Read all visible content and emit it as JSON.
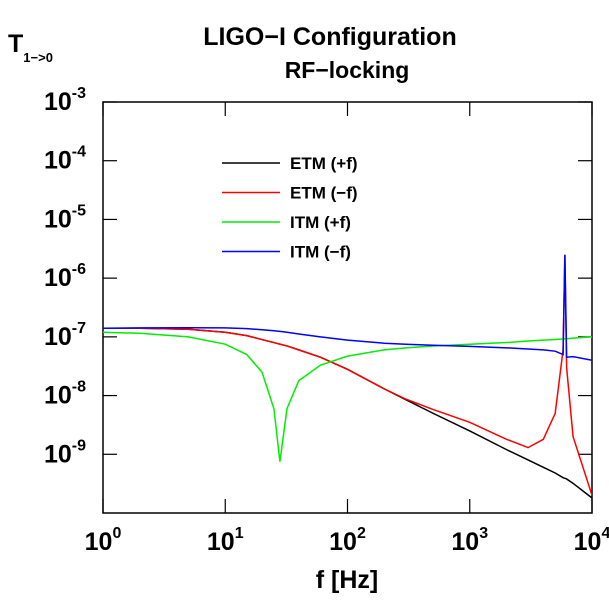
{
  "chart_data": {
    "type": "line",
    "title": "LIGO−I Configuration",
    "subtitle": "RF−locking",
    "xlabel": "f [Hz]",
    "ylabel": "T",
    "ylabel_sub": "1−>0",
    "xscale": "log",
    "yscale": "log",
    "xlim": [
      1,
      10000
    ],
    "ylim": [
      1e-10,
      0.001
    ],
    "xticks": [
      {
        "value": 1,
        "label": "100"
      },
      {
        "value": 10,
        "label": "101"
      },
      {
        "value": 100,
        "label": "102"
      },
      {
        "value": 1000,
        "label": "103"
      },
      {
        "value": 10000,
        "label": "104"
      }
    ],
    "yticks": [
      {
        "value": 0.001,
        "label": "10-3"
      },
      {
        "value": 0.0001,
        "label": "10-4"
      },
      {
        "value": 1e-05,
        "label": "10-5"
      },
      {
        "value": 1e-06,
        "label": "10-6"
      },
      {
        "value": 1e-07,
        "label": "10-7"
      },
      {
        "value": 1e-08,
        "label": "10-8"
      },
      {
        "value": 1e-09,
        "label": "10-9"
      }
    ],
    "legend": "upper center",
    "x": [
      1,
      2,
      5,
      10,
      15,
      20,
      25,
      28,
      32,
      40,
      60,
      100,
      200,
      300,
      500,
      1000,
      2000,
      3000,
      4000,
      5000,
      5800,
      6000,
      6200,
      7000,
      10000
    ],
    "series": [
      {
        "name": "ETM (+f)",
        "color": "#000000",
        "values": [
          1.4e-07,
          1.4e-07,
          1.35e-07,
          1.2e-07,
          1.05e-07,
          9e-08,
          8e-08,
          7.5e-08,
          7e-08,
          6e-08,
          4.5e-08,
          2.8e-08,
          1.3e-08,
          8.5e-09,
          5e-09,
          2.5e-09,
          1.2e-09,
          8e-10,
          6e-10,
          4.8e-10,
          4e-10,
          3.9e-10,
          3.8e-10,
          3.2e-10,
          1.8e-10
        ]
      },
      {
        "name": "ETM (−f)",
        "color": "#ff0000",
        "values": [
          1.4e-07,
          1.4e-07,
          1.35e-07,
          1.2e-07,
          1.05e-07,
          9e-08,
          8e-08,
          7.5e-08,
          7e-08,
          6e-08,
          4.5e-08,
          2.8e-08,
          1.3e-08,
          8.7e-09,
          5.8e-09,
          3.5e-09,
          1.8e-09,
          1.3e-09,
          1.8e-09,
          5e-09,
          6e-08,
          2.5e-06,
          3e-08,
          2e-09,
          2e-10
        ]
      },
      {
        "name": "ITM (+f)",
        "color": "#00ee00",
        "values": [
          1.2e-07,
          1.15e-07,
          1e-07,
          7.5e-08,
          5e-08,
          2.5e-08,
          6e-09,
          7.5e-10,
          6e-09,
          1.8e-08,
          3.3e-08,
          4.7e-08,
          6e-08,
          6.5e-08,
          7e-08,
          7.5e-08,
          8e-08,
          8.5e-08,
          8.8e-08,
          9e-08,
          9.2e-08,
          9.3e-08,
          9.3e-08,
          9.5e-08,
          1e-07
        ]
      },
      {
        "name": "ITM (−f)",
        "color": "#0000ff",
        "values": [
          1.4e-07,
          1.42e-07,
          1.43e-07,
          1.42e-07,
          1.38e-07,
          1.32e-07,
          1.27e-07,
          1.24e-07,
          1.2e-07,
          1.12e-07,
          1e-07,
          8.8e-08,
          7.8e-08,
          7.5e-08,
          7.2e-08,
          6.9e-08,
          6.5e-08,
          6.2e-08,
          6e-08,
          5.7e-08,
          5e-08,
          2.5e-06,
          4.5e-08,
          4.6e-08,
          4e-08
        ]
      }
    ]
  }
}
